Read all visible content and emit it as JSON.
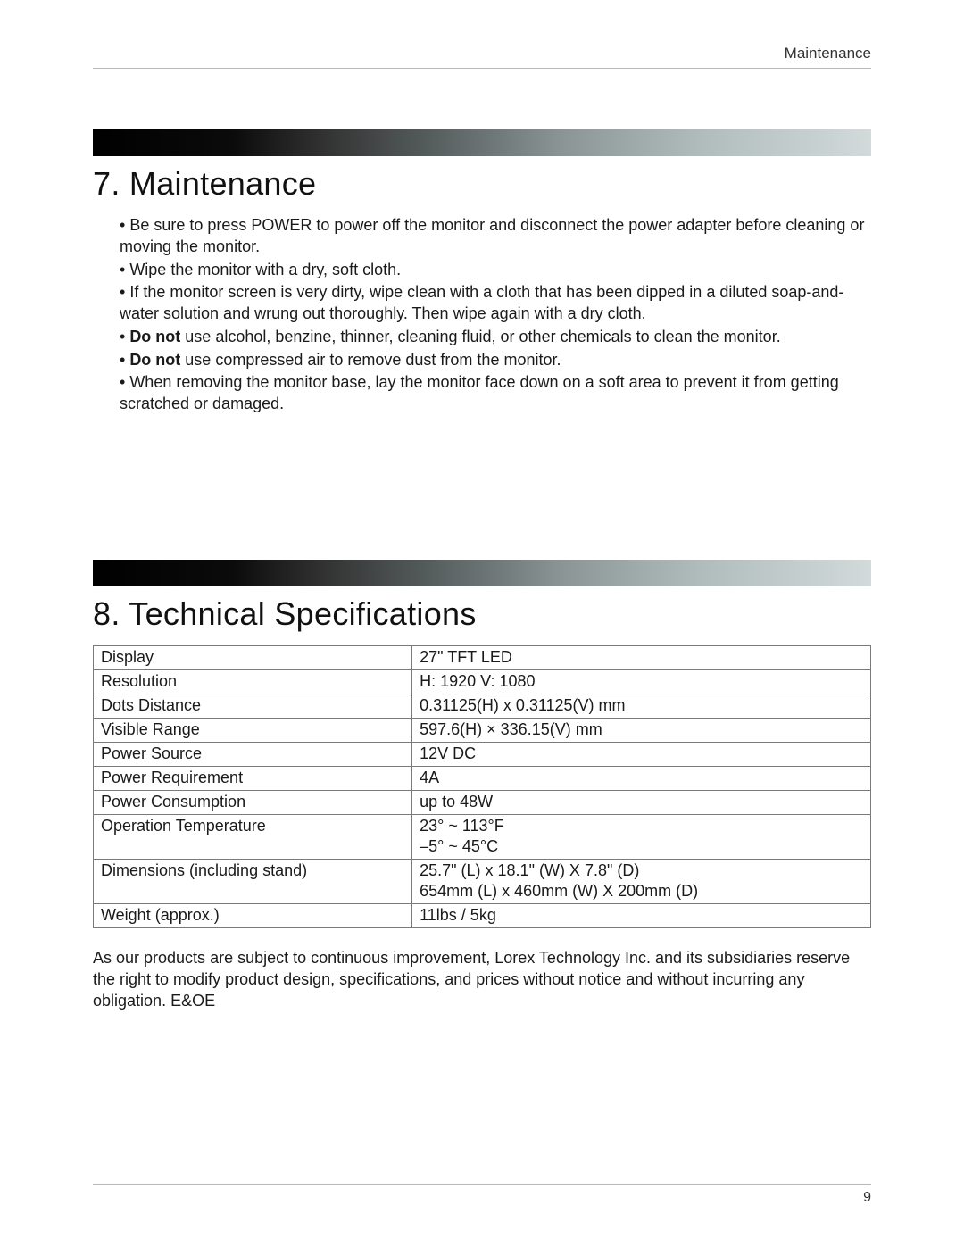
{
  "header": {
    "label": "Maintenance"
  },
  "section1": {
    "title": "7. Maintenance",
    "bullets": [
      {
        "prefix": "• ",
        "text": "Be sure to press POWER to power off the monitor and disconnect the power adapter before cleaning or moving the monitor."
      },
      {
        "prefix": "• ",
        "text": "Wipe the monitor with a dry, soft cloth."
      },
      {
        "prefix": "• ",
        "text": "If the monitor screen is very dirty, wipe clean with a cloth that has been dipped in a diluted soap-and-water solution and wrung out thoroughly. Then wipe again with a dry cloth."
      },
      {
        "prefix": "• ",
        "bold": "Do not",
        "text": " use alcohol, benzine, thinner, cleaning fluid, or other chemicals to clean the monitor."
      },
      {
        "prefix": "• ",
        "bold": "Do not",
        "text": " use compressed air to remove dust from the monitor."
      },
      {
        "prefix": "• ",
        "text": "When removing the monitor base, lay the monitor face down on a soft area to prevent it from getting scratched or damaged."
      }
    ]
  },
  "section2": {
    "title": "8. Technical Specifications",
    "table": {
      "rows": [
        {
          "label": "Display",
          "value": "27\" TFT LED"
        },
        {
          "label": "Resolution",
          "value": "H: 1920 V: 1080"
        },
        {
          "label": "Dots Distance",
          "value": "0.31125(H) x 0.31125(V) mm"
        },
        {
          "label": "Visible Range",
          "value": "597.6(H) × 336.15(V) mm"
        },
        {
          "label": "Power Source",
          "value": "12V DC"
        },
        {
          "label": "Power Requirement",
          "value": "4A"
        },
        {
          "label": "Power Consumption",
          "value": "up to 48W"
        },
        {
          "label": "Operation Temperature",
          "value": "23° ~ 113°F\n–5° ~ 45°C"
        },
        {
          "label": "Dimensions (including stand)",
          "value": "25.7\" (L) x 18.1\" (W) X 7.8\" (D)\n654mm (L) x 460mm (W) X 200mm (D)"
        },
        {
          "label": "Weight (approx.)",
          "value": "11lbs / 5kg"
        }
      ]
    },
    "note": "As our products are subject to continuous improvement, Lorex Technology Inc. and its subsidiaries reserve the right to modify product design, specifications, and prices without notice and without incurring any obligation. E&OE"
  },
  "footer": {
    "page_number": "9"
  },
  "banner_gradient": {
    "colors": [
      "#000000",
      "#0b0b0b",
      "#333333",
      "#5a6262",
      "#8a9494",
      "#b0bcbc",
      "#d2dada"
    ]
  }
}
